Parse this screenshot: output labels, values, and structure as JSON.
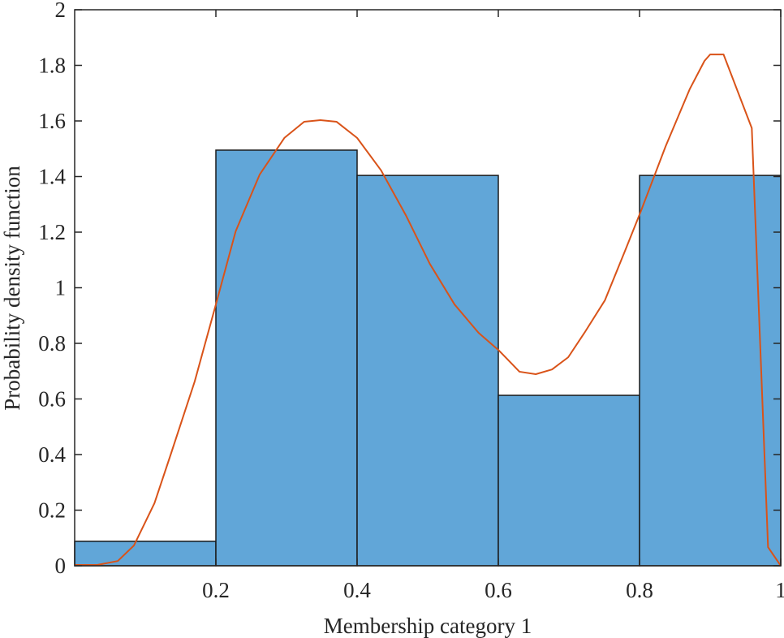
{
  "chart_data": {
    "type": "bar",
    "title": "",
    "xlabel": "Membership category 1",
    "ylabel": "Probability density function",
    "xlim": [
      0,
      1
    ],
    "ylim": [
      0,
      2
    ],
    "grid": false,
    "xticks": [
      0.2,
      0.4,
      0.6,
      0.8,
      1
    ],
    "xtick_labels": [
      "0.2",
      "0.4",
      "0.6",
      "0.8",
      "1"
    ],
    "yticks": [
      0,
      0.2,
      0.4,
      0.6,
      0.8,
      1,
      1.2,
      1.4,
      1.6,
      1.8,
      2
    ],
    "ytick_labels": [
      "0",
      "0.2",
      "0.4",
      "0.6",
      "0.8",
      "1",
      "1.2",
      "1.4",
      "1.6",
      "1.8",
      "2"
    ],
    "histogram": {
      "bin_edges": [
        0,
        0.2,
        0.4,
        0.6,
        0.8,
        1.0
      ],
      "values": [
        0.088,
        1.495,
        1.404,
        0.613,
        1.404
      ],
      "color": "#61a6d8",
      "edge_color": "#1a1a1a"
    },
    "density_curve": {
      "type": "line",
      "color": "#d95319",
      "x": [
        0,
        0.032,
        0.061,
        0.084,
        0.113,
        0.136,
        0.17,
        0.2,
        0.228,
        0.262,
        0.297,
        0.325,
        0.348,
        0.371,
        0.4,
        0.434,
        0.469,
        0.503,
        0.538,
        0.572,
        0.601,
        0.63,
        0.653,
        0.676,
        0.699,
        0.722,
        0.751,
        0.779,
        0.802,
        0.837,
        0.871,
        0.892,
        0.9,
        0.919,
        0.959,
        0.982,
        1.0
      ],
      "y": [
        0.003,
        0.003,
        0.017,
        0.073,
        0.225,
        0.4,
        0.663,
        0.94,
        1.203,
        1.407,
        1.539,
        1.597,
        1.603,
        1.597,
        1.539,
        1.422,
        1.261,
        1.086,
        0.94,
        0.838,
        0.774,
        0.698,
        0.689,
        0.706,
        0.75,
        0.838,
        0.955,
        1.13,
        1.276,
        1.509,
        1.714,
        1.816,
        1.839,
        1.839,
        1.574,
        0.067,
        0.0
      ]
    }
  }
}
